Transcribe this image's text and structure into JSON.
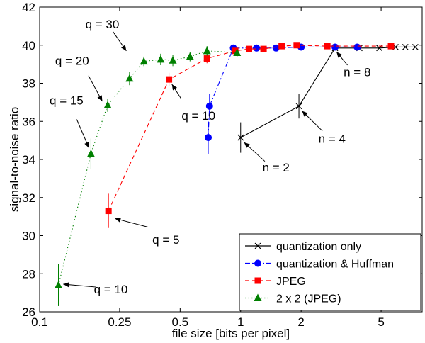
{
  "chart_data": {
    "type": "line",
    "title": "",
    "xlabel": "file size [bits per pixel]",
    "ylabel": "signal-to-noise ratio",
    "xscale": "log",
    "xlim": [
      0.1,
      8
    ],
    "ylim": [
      26,
      42
    ],
    "xticks": [
      {
        "value": 0.1,
        "label": "0.1"
      },
      {
        "value": 0.25,
        "label": "0.25"
      },
      {
        "value": 0.5,
        "label": "0.5"
      },
      {
        "value": 1,
        "label": "1"
      },
      {
        "value": 2,
        "label": "2"
      },
      {
        "value": 5,
        "label": "5"
      }
    ],
    "yticks": [
      26,
      28,
      30,
      32,
      34,
      36,
      38,
      40,
      42
    ],
    "reference_line": {
      "y": 39.9,
      "color": "#000000"
    },
    "legend_position": "bottom-right",
    "series": [
      {
        "name": "quantization only",
        "color": "#000000",
        "linestyle": "solid",
        "marker": "x",
        "points": [
          {
            "x": 1.0,
            "y": 35.15,
            "err": 0.8
          },
          {
            "x": 1.95,
            "y": 36.8,
            "err": 0.65
          },
          {
            "x": 2.95,
            "y": 39.85
          },
          {
            "x": 3.9,
            "y": 39.85
          },
          {
            "x": 4.9,
            "y": 39.85
          },
          {
            "x": 5.9,
            "y": 39.9
          },
          {
            "x": 6.6,
            "y": 39.9
          },
          {
            "x": 7.4,
            "y": 39.9
          }
        ]
      },
      {
        "name": "quantization & Huffman",
        "color": "#0000ff",
        "linestyle": "dashdot",
        "marker": "circle",
        "points": [
          {
            "x": 0.69,
            "y": 35.15,
            "err": 0.85
          },
          {
            "x": 0.7,
            "y": 36.8,
            "err": 0.65
          },
          {
            "x": 0.92,
            "y": 39.85
          },
          {
            "x": 1.2,
            "y": 39.85
          },
          {
            "x": 1.5,
            "y": 39.85
          },
          {
            "x": 2.0,
            "y": 39.9
          },
          {
            "x": 2.95,
            "y": 39.9
          },
          {
            "x": 3.8,
            "y": 39.9
          }
        ]
      },
      {
        "name": "JPEG",
        "color": "#ff0000",
        "linestyle": "dashed",
        "marker": "square",
        "points": [
          {
            "x": 0.22,
            "y": 31.3,
            "err": 0.9
          },
          {
            "x": 0.44,
            "y": 38.2,
            "err": 0.35
          },
          {
            "x": 0.68,
            "y": 39.3,
            "err": 0.25
          },
          {
            "x": 0.94,
            "y": 39.7
          },
          {
            "x": 1.1,
            "y": 39.8
          },
          {
            "x": 1.3,
            "y": 39.8
          },
          {
            "x": 1.6,
            "y": 39.95
          },
          {
            "x": 1.9,
            "y": 40.0
          },
          {
            "x": 2.7,
            "y": 39.95
          },
          {
            "x": 5.6,
            "y": 39.95
          }
        ]
      },
      {
        "name": "2 x 2 (JPEG)",
        "color": "#008000",
        "linestyle": "dotted",
        "marker": "triangle",
        "points": [
          {
            "x": 0.124,
            "y": 27.4,
            "err": 1.1
          },
          {
            "x": 0.18,
            "y": 34.3,
            "err": 0.8
          },
          {
            "x": 0.218,
            "y": 36.85,
            "err": 0.35
          },
          {
            "x": 0.28,
            "y": 38.25,
            "err": 0.35
          },
          {
            "x": 0.33,
            "y": 39.15,
            "err": 0.25
          },
          {
            "x": 0.4,
            "y": 39.25,
            "err": 0.3
          },
          {
            "x": 0.46,
            "y": 39.2,
            "err": 0.3
          },
          {
            "x": 0.56,
            "y": 39.4,
            "err": 0.25
          },
          {
            "x": 0.68,
            "y": 39.7,
            "err": 0.25
          },
          {
            "x": 0.96,
            "y": 39.6,
            "err": 0.2
          }
        ]
      }
    ],
    "annotations": [
      {
        "text": "q = 30",
        "x": 0.205,
        "y": 41.1,
        "ax": 0.27,
        "ay": 39.7,
        "tx": 0.232,
        "ty": 40.7
      },
      {
        "text": "q = 20",
        "x": 0.145,
        "y": 39.2,
        "ax": 0.205,
        "ay": 37.05,
        "tx": 0.175,
        "ty": 38.4
      },
      {
        "text": "q = 15",
        "x": 0.136,
        "y": 37.1,
        "ax": 0.176,
        "ay": 34.6,
        "tx": 0.153,
        "ty": 36.1
      },
      {
        "text": "q = 10",
        "x": 0.617,
        "y": 36.3,
        "ax": 0.455,
        "ay": 37.95,
        "tx": 0.505,
        "ty": 37.2
      },
      {
        "text": "q = 5",
        "x": 0.425,
        "y": 29.8,
        "ax": 0.237,
        "ay": 30.9,
        "tx": 0.345,
        "ty": 30.45
      },
      {
        "text": "q = 10",
        "x": 0.226,
        "y": 27.2,
        "ax": 0.131,
        "ay": 27.45,
        "tx": 0.191,
        "ty": 27.3
      },
      {
        "text": "n = 2",
        "x": 1.5,
        "y": 33.6,
        "ax": 1.04,
        "ay": 34.9,
        "tx": 1.32,
        "ty": 33.9
      },
      {
        "text": "n = 4",
        "x": 2.85,
        "y": 35.1,
        "ax": 2.02,
        "ay": 36.55,
        "tx": 2.55,
        "ty": 35.5
      },
      {
        "text": "n = 8",
        "x": 3.8,
        "y": 38.6,
        "ax": 3.0,
        "ay": 39.65,
        "tx": 3.4,
        "ty": 38.95
      }
    ]
  }
}
